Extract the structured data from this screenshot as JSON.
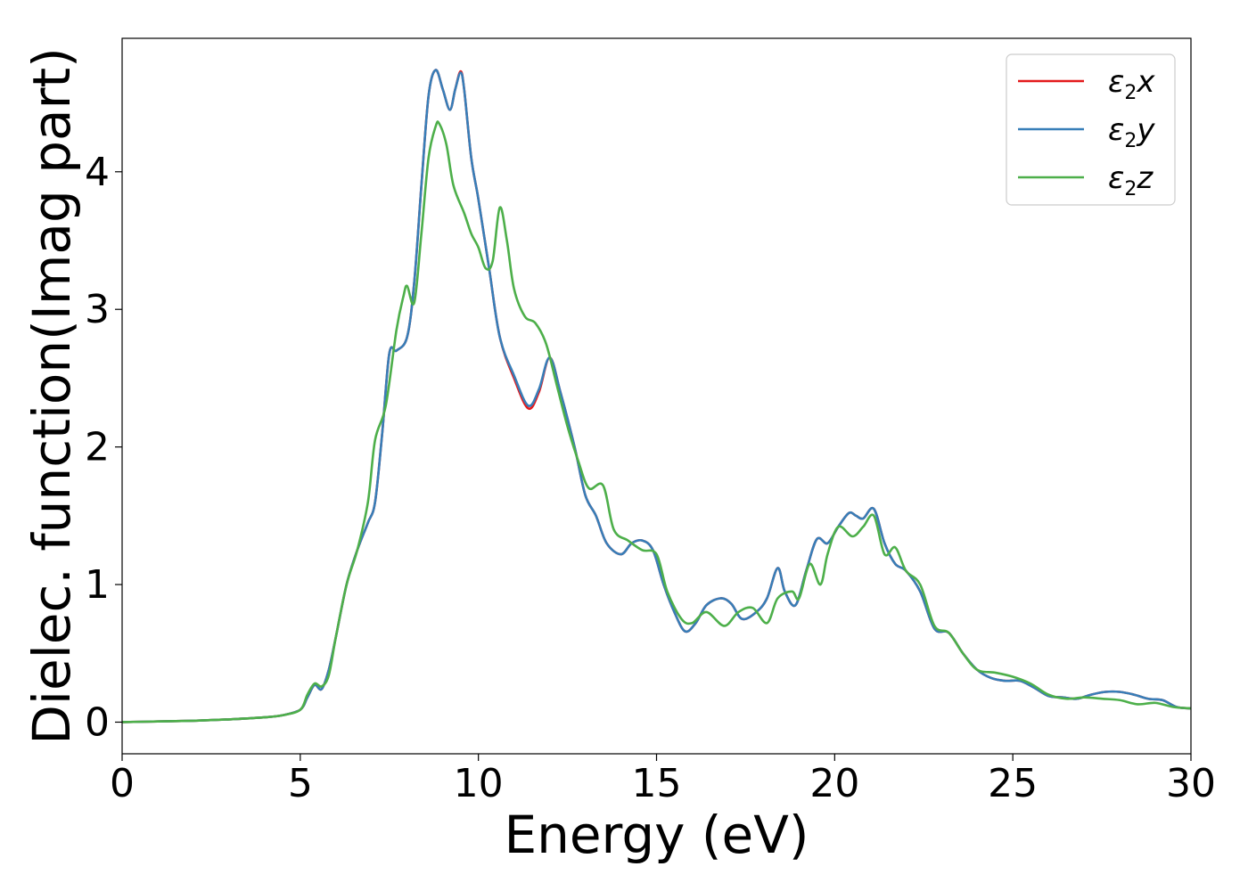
{
  "chart_data": {
    "type": "line",
    "xlabel": "Energy (eV)",
    "ylabel": "Dielec. function(Imag part)",
    "xlim": [
      0,
      30
    ],
    "ylim": [
      -0.23,
      4.97
    ],
    "xticks": [
      0,
      5,
      10,
      15,
      20,
      25,
      30
    ],
    "yticks": [
      0,
      1,
      2,
      3,
      4
    ],
    "grid": false,
    "legend_position": "top-right",
    "series": [
      {
        "name": "ε2x",
        "name_parts": [
          "ε",
          "2",
          "x"
        ],
        "color": "#e41a1c",
        "x": [
          0,
          1,
          2,
          3,
          4,
          4.5,
          5,
          5.2,
          5.4,
          5.6,
          5.8,
          6,
          6.3,
          6.6,
          6.9,
          7.1,
          7.3,
          7.5,
          7.7,
          8.0,
          8.2,
          8.4,
          8.6,
          8.8,
          9.0,
          9.2,
          9.35,
          9.5,
          9.6,
          9.8,
          10.0,
          10.3,
          10.6,
          11.0,
          11.4,
          11.7,
          12.0,
          12.3,
          12.7,
          13.0,
          13.3,
          13.6,
          14.0,
          14.3,
          14.6,
          14.9,
          15.2,
          15.5,
          15.8,
          16.1,
          16.4,
          16.8,
          17.1,
          17.4,
          17.8,
          18.1,
          18.4,
          18.6,
          18.9,
          19.2,
          19.5,
          19.8,
          20.1,
          20.4,
          20.6,
          20.8,
          21.1,
          21.4,
          21.7,
          22.0,
          22.4,
          22.8,
          23.2,
          23.6,
          24.0,
          24.4,
          24.8,
          25.2,
          25.6,
          26.0,
          26.4,
          26.8,
          27.2,
          27.6,
          28.0,
          28.4,
          28.8,
          29.2,
          29.6,
          30.0
        ],
        "y": [
          0.0,
          0.005,
          0.01,
          0.02,
          0.035,
          0.05,
          0.09,
          0.18,
          0.27,
          0.24,
          0.38,
          0.62,
          1.0,
          1.25,
          1.45,
          1.6,
          2.1,
          2.68,
          2.7,
          2.8,
          3.2,
          3.9,
          4.55,
          4.74,
          4.6,
          4.45,
          4.6,
          4.73,
          4.6,
          4.1,
          3.8,
          3.3,
          2.8,
          2.5,
          2.28,
          2.4,
          2.65,
          2.4,
          2.0,
          1.65,
          1.5,
          1.3,
          1.22,
          1.3,
          1.32,
          1.25,
          1.0,
          0.8,
          0.66,
          0.72,
          0.85,
          0.9,
          0.86,
          0.75,
          0.8,
          0.9,
          1.12,
          0.95,
          0.85,
          1.1,
          1.33,
          1.3,
          1.42,
          1.52,
          1.5,
          1.48,
          1.55,
          1.3,
          1.15,
          1.1,
          0.95,
          0.68,
          0.65,
          0.5,
          0.38,
          0.32,
          0.3,
          0.3,
          0.25,
          0.19,
          0.18,
          0.17,
          0.2,
          0.22,
          0.22,
          0.2,
          0.17,
          0.16,
          0.11,
          0.1
        ]
      },
      {
        "name": "ε2y",
        "name_parts": [
          "ε",
          "2",
          "y"
        ],
        "color": "#377eb8",
        "x": [
          0,
          1,
          2,
          3,
          4,
          4.5,
          5,
          5.2,
          5.4,
          5.6,
          5.8,
          6,
          6.3,
          6.6,
          6.9,
          7.1,
          7.3,
          7.5,
          7.7,
          8.0,
          8.2,
          8.4,
          8.6,
          8.8,
          9.0,
          9.2,
          9.35,
          9.5,
          9.6,
          9.8,
          10.0,
          10.3,
          10.6,
          11.0,
          11.4,
          11.7,
          12.0,
          12.3,
          12.7,
          13.0,
          13.3,
          13.6,
          14.0,
          14.3,
          14.6,
          14.9,
          15.2,
          15.5,
          15.8,
          16.1,
          16.4,
          16.8,
          17.1,
          17.4,
          17.8,
          18.1,
          18.4,
          18.6,
          18.9,
          19.2,
          19.5,
          19.8,
          20.1,
          20.4,
          20.6,
          20.8,
          21.1,
          21.4,
          21.7,
          22.0,
          22.4,
          22.8,
          23.2,
          23.6,
          24.0,
          24.4,
          24.8,
          25.2,
          25.6,
          26.0,
          26.4,
          26.8,
          27.2,
          27.6,
          28.0,
          28.4,
          28.8,
          29.2,
          29.6,
          30.0
        ],
        "y": [
          0.0,
          0.005,
          0.01,
          0.02,
          0.035,
          0.05,
          0.09,
          0.18,
          0.27,
          0.24,
          0.38,
          0.62,
          1.0,
          1.25,
          1.45,
          1.6,
          2.1,
          2.68,
          2.7,
          2.8,
          3.2,
          3.9,
          4.55,
          4.74,
          4.6,
          4.45,
          4.6,
          4.72,
          4.6,
          4.1,
          3.8,
          3.3,
          2.8,
          2.52,
          2.3,
          2.42,
          2.65,
          2.4,
          2.0,
          1.65,
          1.5,
          1.3,
          1.22,
          1.3,
          1.32,
          1.25,
          1.0,
          0.8,
          0.66,
          0.72,
          0.85,
          0.9,
          0.86,
          0.75,
          0.8,
          0.9,
          1.12,
          0.95,
          0.85,
          1.1,
          1.33,
          1.3,
          1.42,
          1.52,
          1.5,
          1.48,
          1.55,
          1.3,
          1.15,
          1.1,
          0.95,
          0.68,
          0.65,
          0.5,
          0.38,
          0.32,
          0.3,
          0.3,
          0.25,
          0.19,
          0.18,
          0.17,
          0.2,
          0.22,
          0.22,
          0.2,
          0.17,
          0.16,
          0.11,
          0.1
        ]
      },
      {
        "name": "ε2z",
        "name_parts": [
          "ε",
          "2",
          "z"
        ],
        "color": "#4daf4a",
        "x": [
          0,
          1,
          2,
          3,
          4,
          4.5,
          5,
          5.2,
          5.4,
          5.6,
          5.8,
          6.0,
          6.3,
          6.6,
          6.9,
          7.1,
          7.4,
          7.7,
          7.9,
          8.0,
          8.2,
          8.4,
          8.6,
          8.8,
          8.9,
          9.1,
          9.3,
          9.6,
          9.8,
          10.0,
          10.2,
          10.4,
          10.6,
          10.8,
          11.0,
          11.3,
          11.6,
          11.9,
          12.2,
          12.5,
          12.8,
          13.1,
          13.5,
          13.8,
          14.2,
          14.6,
          15.0,
          15.3,
          15.7,
          16.0,
          16.4,
          16.9,
          17.3,
          17.7,
          18.1,
          18.4,
          18.8,
          19.0,
          19.3,
          19.6,
          19.8,
          20.1,
          20.5,
          20.8,
          21.1,
          21.4,
          21.7,
          22.0,
          22.4,
          22.8,
          23.2,
          23.6,
          24.0,
          24.5,
          25.0,
          25.5,
          26.0,
          26.5,
          27.0,
          27.5,
          28.0,
          28.5,
          29.0,
          29.5,
          30.0
        ],
        "y": [
          0.0,
          0.005,
          0.01,
          0.02,
          0.035,
          0.05,
          0.09,
          0.2,
          0.28,
          0.26,
          0.34,
          0.62,
          1.0,
          1.25,
          1.6,
          2.05,
          2.3,
          2.85,
          3.1,
          3.17,
          3.05,
          3.55,
          4.1,
          4.33,
          4.35,
          4.2,
          3.9,
          3.7,
          3.55,
          3.45,
          3.3,
          3.35,
          3.74,
          3.5,
          3.15,
          2.95,
          2.9,
          2.75,
          2.45,
          2.15,
          1.9,
          1.7,
          1.72,
          1.4,
          1.32,
          1.25,
          1.22,
          0.95,
          0.75,
          0.72,
          0.8,
          0.7,
          0.8,
          0.83,
          0.72,
          0.9,
          0.95,
          0.9,
          1.15,
          1.0,
          1.22,
          1.42,
          1.35,
          1.42,
          1.5,
          1.22,
          1.27,
          1.1,
          1.0,
          0.7,
          0.65,
          0.5,
          0.38,
          0.36,
          0.33,
          0.28,
          0.2,
          0.17,
          0.18,
          0.17,
          0.16,
          0.13,
          0.14,
          0.11,
          0.1
        ]
      }
    ]
  }
}
